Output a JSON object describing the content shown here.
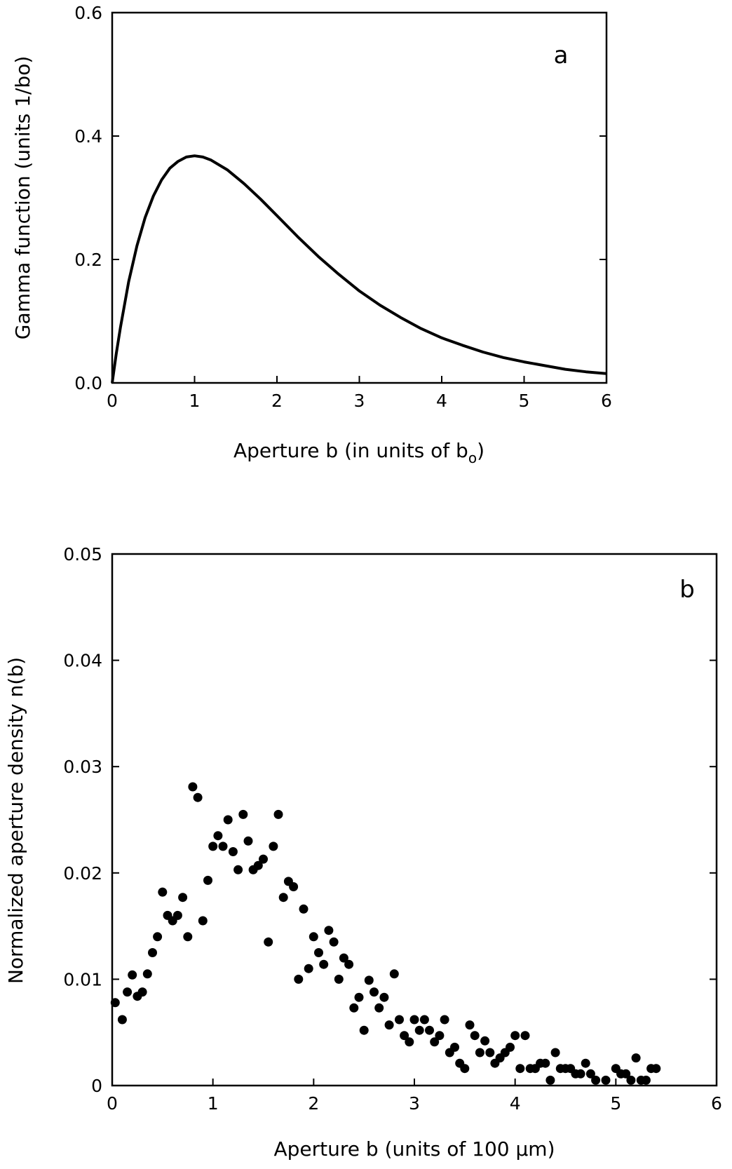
{
  "chart_data": [
    {
      "type": "line",
      "panel_label": "a",
      "xlabel": "Aperture b (in units of b",
      "xlabel_sub": "o",
      "xlabel_tail": ")",
      "ylabel": "Gamma function (units 1/bo)",
      "xlim": [
        0,
        6
      ],
      "ylim": [
        0,
        0.6
      ],
      "x_ticks": [
        "0",
        "1",
        "2",
        "3",
        "4",
        "5",
        "6"
      ],
      "y_ticks": [
        "0.0",
        "0.2",
        "0.4",
        "0.6"
      ],
      "series": [
        {
          "x": [
            0,
            0.05,
            0.1,
            0.2,
            0.3,
            0.4,
            0.5,
            0.6,
            0.7,
            0.8,
            0.9,
            1.0,
            1.1,
            1.2,
            1.4,
            1.6,
            1.8,
            2.0,
            2.25,
            2.5,
            2.75,
            3.0,
            3.25,
            3.5,
            3.75,
            4.0,
            4.25,
            4.5,
            4.75,
            5.0,
            5.25,
            5.5,
            5.75,
            6.0
          ],
          "y": [
            0,
            0.048,
            0.09,
            0.164,
            0.222,
            0.268,
            0.303,
            0.329,
            0.348,
            0.359,
            0.366,
            0.368,
            0.366,
            0.361,
            0.345,
            0.323,
            0.298,
            0.271,
            0.237,
            0.205,
            0.176,
            0.149,
            0.126,
            0.106,
            0.088,
            0.073,
            0.061,
            0.05,
            0.041,
            0.034,
            0.028,
            0.022,
            0.018,
            0.015
          ]
        }
      ],
      "grid": false
    },
    {
      "type": "scatter",
      "panel_label": "b",
      "xlabel": "Aperture b (units of 100 μm)",
      "ylabel": "Normalized aperture density n(b)",
      "xlim": [
        0,
        6
      ],
      "ylim": [
        0,
        0.05
      ],
      "x_ticks": [
        "0",
        "1",
        "2",
        "3",
        "4",
        "5",
        "6"
      ],
      "y_ticks": [
        "0",
        "0.01",
        "0.02",
        "0.03",
        "0.04",
        "0.05"
      ],
      "series": [
        {
          "x": [
            0.03,
            0.1,
            0.15,
            0.2,
            0.25,
            0.3,
            0.35,
            0.4,
            0.45,
            0.5,
            0.55,
            0.6,
            0.65,
            0.7,
            0.75,
            0.8,
            0.85,
            0.9,
            0.95,
            1.0,
            1.05,
            1.1,
            1.15,
            1.2,
            1.25,
            1.3,
            1.35,
            1.4,
            1.45,
            1.5,
            1.55,
            1.6,
            1.65,
            1.7,
            1.75,
            1.8,
            1.85,
            1.9,
            1.95,
            2.0,
            2.05,
            2.1,
            2.15,
            2.2,
            2.25,
            2.3,
            2.35,
            2.4,
            2.45,
            2.5,
            2.55,
            2.6,
            2.65,
            2.7,
            2.75,
            2.8,
            2.85,
            2.9,
            2.95,
            3.0,
            3.05,
            3.1,
            3.15,
            3.2,
            3.25,
            3.3,
            3.35,
            3.4,
            3.45,
            3.5,
            3.55,
            3.6,
            3.65,
            3.7,
            3.75,
            3.8,
            3.85,
            3.9,
            3.95,
            4.0,
            4.05,
            4.1,
            4.15,
            4.2,
            4.25,
            4.3,
            4.35,
            4.4,
            4.45,
            4.5,
            4.55,
            4.6,
            4.65,
            4.7,
            4.75,
            4.8,
            4.9,
            5.0,
            5.05,
            5.1,
            5.15,
            5.2,
            5.25,
            5.3,
            5.35,
            5.4
          ],
          "y": [
            0.0078,
            0.0062,
            0.0088,
            0.0104,
            0.0084,
            0.0088,
            0.0105,
            0.0125,
            0.014,
            0.0182,
            0.016,
            0.0155,
            0.016,
            0.0177,
            0.014,
            0.0281,
            0.0271,
            0.0155,
            0.0193,
            0.0225,
            0.0235,
            0.0225,
            0.025,
            0.022,
            0.0203,
            0.0255,
            0.023,
            0.0203,
            0.0207,
            0.0213,
            0.0135,
            0.0225,
            0.0255,
            0.0177,
            0.0192,
            0.0187,
            0.01,
            0.0166,
            0.011,
            0.014,
            0.0125,
            0.0114,
            0.0146,
            0.0135,
            0.01,
            0.012,
            0.0114,
            0.0073,
            0.0083,
            0.0052,
            0.0099,
            0.0088,
            0.0073,
            0.0083,
            0.0057,
            0.0105,
            0.0062,
            0.0047,
            0.0041,
            0.0062,
            0.0052,
            0.0062,
            0.0052,
            0.0041,
            0.0047,
            0.0062,
            0.0031,
            0.0036,
            0.0021,
            0.0016,
            0.0057,
            0.0047,
            0.0031,
            0.0042,
            0.0031,
            0.0021,
            0.0026,
            0.0031,
            0.0036,
            0.0047,
            0.0016,
            0.0047,
            0.0016,
            0.0016,
            0.0021,
            0.0021,
            0.0005,
            0.0031,
            0.0016,
            0.0016,
            0.0016,
            0.0011,
            0.0011,
            0.0021,
            0.0011,
            0.0005,
            0.0005,
            0.0016,
            0.0011,
            0.0011,
            0.0005,
            0.0026,
            0.0005,
            0.0005,
            0.0016,
            0.0016
          ]
        }
      ],
      "grid": false
    }
  ]
}
